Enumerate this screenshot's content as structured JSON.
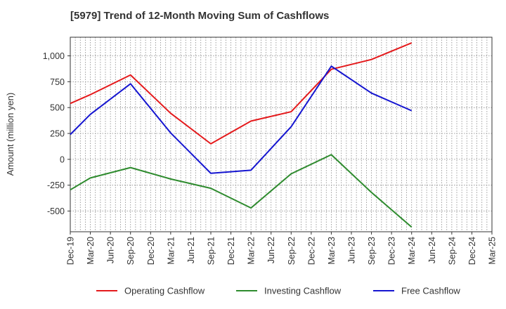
{
  "title": "[5979]  Trend of 12-Month Moving Sum of Cashflows",
  "chart_data": {
    "type": "line",
    "title": "[5979]  Trend of 12-Month Moving Sum of Cashflows",
    "xlabel": "",
    "ylabel": "Amount (million yen)",
    "ylim": [
      -700,
      1180
    ],
    "yticks": [
      -500,
      -250,
      0,
      250,
      500,
      750,
      1000
    ],
    "ytick_labels": [
      "-500",
      "-250",
      "0",
      "250",
      "500",
      "750",
      "1,000"
    ],
    "x_tick_labels": [
      "Dec-19",
      "Mar-20",
      "Jun-20",
      "Sep-20",
      "Dec-20",
      "Mar-21",
      "Jun-21",
      "Sep-21",
      "Dec-21",
      "Mar-22",
      "Jun-22",
      "Sep-22",
      "Dec-22",
      "Mar-23",
      "Jun-23",
      "Sep-23",
      "Dec-23",
      "Mar-24",
      "Jun-24",
      "Sep-24",
      "Dec-24",
      "Mar-25"
    ],
    "grid": true,
    "legend_position": "bottom",
    "series": [
      {
        "name": "Operating Cashflow",
        "color": "#e41a1c",
        "x": [
          "Dec-19",
          "Mar-20",
          "Sep-20",
          "Mar-21",
          "Sep-21",
          "Mar-22",
          "Sep-22",
          "Mar-23",
          "Sep-23",
          "Mar-24"
        ],
        "values": [
          540,
          625,
          815,
          445,
          150,
          370,
          460,
          870,
          965,
          1125
        ]
      },
      {
        "name": "Investing Cashflow",
        "color": "#2e8b2e",
        "x": [
          "Dec-19",
          "Mar-20",
          "Sep-20",
          "Mar-21",
          "Sep-21",
          "Mar-22",
          "Sep-22",
          "Mar-23",
          "Sep-23",
          "Mar-24"
        ],
        "values": [
          -295,
          -180,
          -80,
          -190,
          -280,
          -470,
          -140,
          45,
          -320,
          -655
        ]
      },
      {
        "name": "Free Cashflow",
        "color": "#1515d0",
        "x": [
          "Dec-19",
          "Mar-20",
          "Sep-20",
          "Mar-21",
          "Sep-21",
          "Mar-22",
          "Sep-22",
          "Mar-23",
          "Sep-23",
          "Mar-24"
        ],
        "values": [
          240,
          435,
          730,
          255,
          -135,
          -105,
          315,
          900,
          640,
          470
        ]
      }
    ]
  }
}
